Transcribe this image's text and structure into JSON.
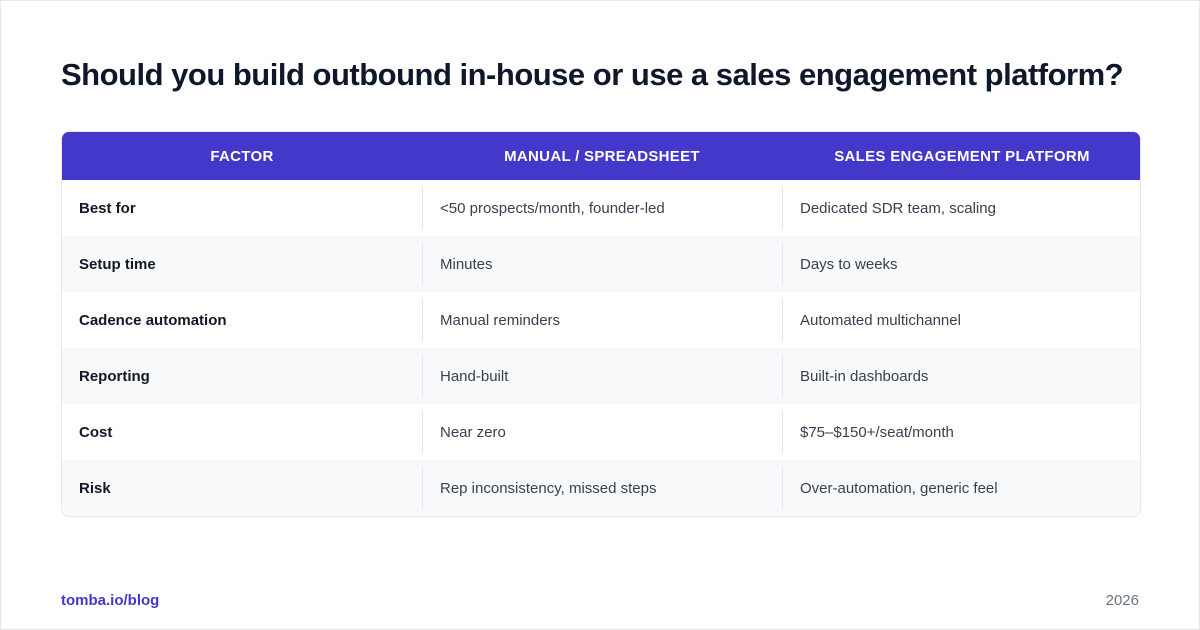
{
  "title": "Should you build outbound in-house or use a sales engagement platform?",
  "table": {
    "headers": [
      "FACTOR",
      "MANUAL / SPREADSHEET",
      "SALES ENGAGEMENT PLATFORM"
    ],
    "rows": [
      {
        "factor": "Best for",
        "manual": "<50 prospects/month, founder-led",
        "platform": "Dedicated SDR team, scaling"
      },
      {
        "factor": "Setup time",
        "manual": "Minutes",
        "platform": "Days to weeks"
      },
      {
        "factor": "Cadence automation",
        "manual": "Manual reminders",
        "platform": "Automated multichannel"
      },
      {
        "factor": "Reporting",
        "manual": "Hand-built",
        "platform": "Built-in dashboards"
      },
      {
        "factor": "Cost",
        "manual": "Near zero",
        "platform": "$75–$150+/seat/month"
      },
      {
        "factor": "Risk",
        "manual": "Rep inconsistency, missed steps",
        "platform": "Over-automation, generic feel"
      }
    ]
  },
  "footer": {
    "link": "tomba.io/blog",
    "year": "2026"
  },
  "colors": {
    "header_bg": "#4338ca",
    "accent": "#4338ca",
    "alt_row": "#f8f9fb"
  }
}
